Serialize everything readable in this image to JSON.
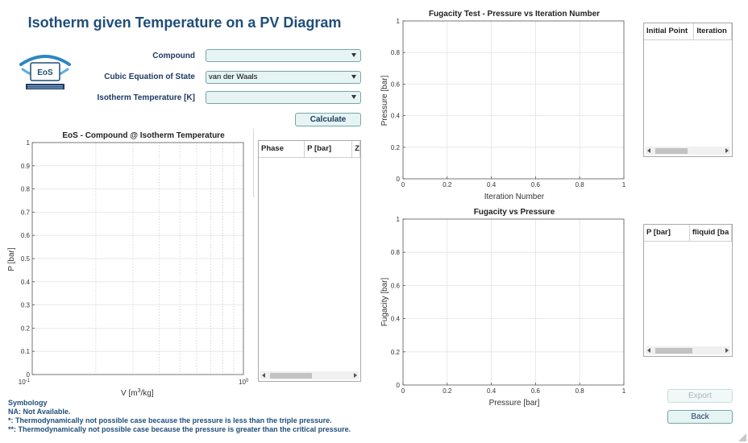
{
  "title": "Isotherm given Temperature on a PV Diagram",
  "logo": {
    "text": "EoS"
  },
  "form": {
    "compound_label": "Compound",
    "compound_value": "",
    "eos_label": "Cubic Equation of State",
    "eos_value": "van der Waals",
    "temp_label": "Isotherm Temperature [K]",
    "temp_value": "",
    "calculate_label": "Calculate"
  },
  "pv_plot": {
    "title": "EoS - Compound @ Isotherm Temperature",
    "ylabel": "P [bar]",
    "xlabel_main": "V  [m",
    "xlabel_sup": "3",
    "xlabel_end": "/kg]",
    "y_ticks": [
      "0",
      "0.1",
      "0.2",
      "0.3",
      "0.4",
      "0.5",
      "0.6",
      "0.7",
      "0.8",
      "0.9",
      "1"
    ],
    "x_tick_left_base": "10",
    "x_tick_left_exp": "-1",
    "x_tick_right_base": "10",
    "x_tick_right_exp": "0"
  },
  "phase_table": {
    "headers": [
      "Phase",
      "P [bar]",
      "Z"
    ]
  },
  "fug_test_plot": {
    "title": "Fugacity Test - Pressure vs Iteration Number",
    "ylabel": "Pressure [bar]",
    "xlabel": "Iteration Number",
    "x_ticks": [
      "0",
      "0.2",
      "0.4",
      "0.6",
      "0.8",
      "1"
    ],
    "y_ticks": [
      "0",
      "0.2",
      "0.4",
      "0.6",
      "0.8",
      "1"
    ]
  },
  "iter_table": {
    "headers": [
      "Initial Point",
      "Iteration"
    ]
  },
  "fug_plot": {
    "title": "Fugacity vs Pressure",
    "ylabel": "Fugacity [bar]",
    "xlabel": "Pressure [bar]",
    "x_ticks": [
      "0",
      "0.2",
      "0.4",
      "0.6",
      "0.8",
      "1"
    ],
    "y_ticks": [
      "0",
      "0.2",
      "0.4",
      "0.6",
      "0.8",
      "1"
    ]
  },
  "fug_table": {
    "headers": [
      "P [bar]",
      "fliquid [ba"
    ]
  },
  "buttons": {
    "export": "Export",
    "back": "Back"
  },
  "symbology": {
    "title": "Symbology",
    "na": "NA: Not Available.",
    "star1": "*: Thermodynamically not possible case because the pressure is less than the triple pressure.",
    "star2": "**: Thermodynamically not possible case because the pressure is greater than the critical pressure."
  },
  "colors": {
    "title": "#1f4e79",
    "control_bg": "#e6f4f4",
    "control_border": "#7aa4a4"
  }
}
